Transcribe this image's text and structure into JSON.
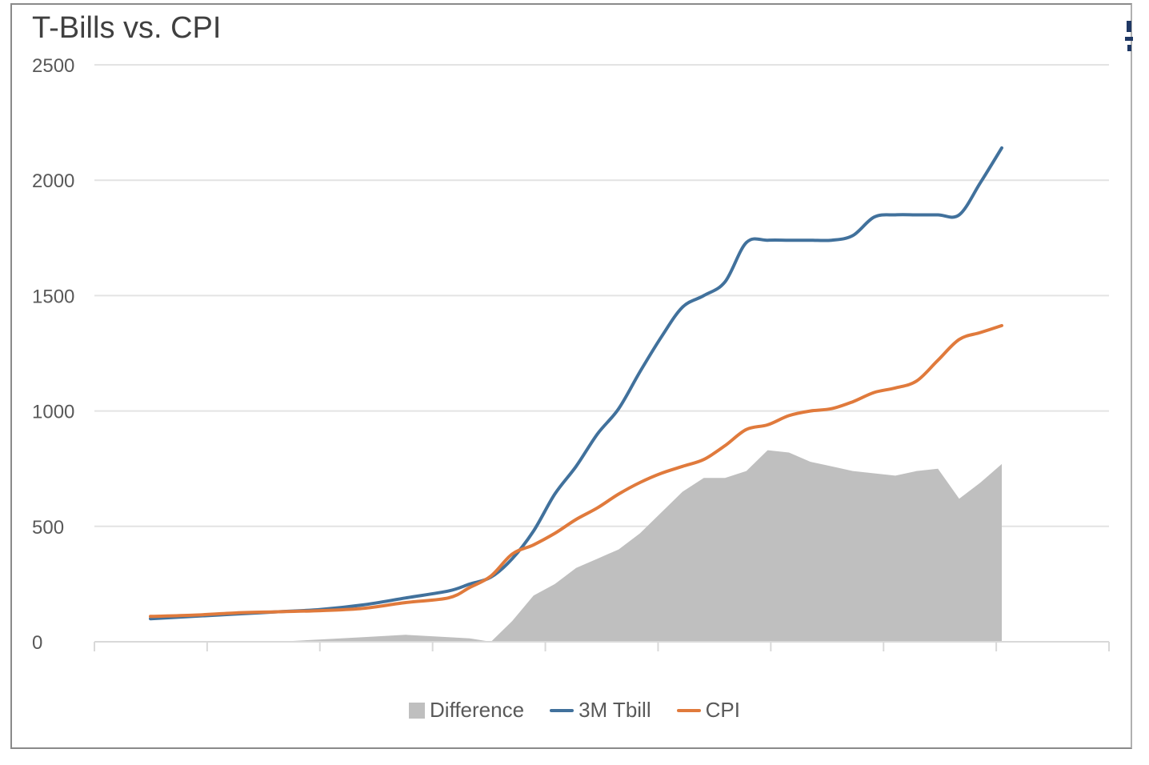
{
  "chart_data": {
    "type": "area",
    "title": "T-Bills vs. CPI",
    "xlabel": "",
    "ylabel": "",
    "ylim": [
      0,
      2500
    ],
    "yticks": [
      "0",
      "500",
      "1000",
      "1500",
      "2000",
      "2500"
    ],
    "x_categories": 8,
    "grid": true,
    "legend_position": "bottom",
    "x": [
      0,
      0.4,
      0.8,
      1.2,
      1.6,
      2.0,
      2.4,
      2.8,
      3.0,
      3.2,
      3.4,
      3.6,
      3.8,
      4.0,
      4.2,
      4.4,
      4.6,
      4.8,
      5.0,
      5.2,
      5.4,
      5.6,
      5.8,
      6.0,
      6.2,
      6.4,
      6.6,
      6.8,
      7.0,
      7.2,
      7.4,
      7.6,
      7.8,
      8.0
    ],
    "series": [
      {
        "name": "Difference",
        "kind": "area",
        "color": "#bfbfbf",
        "values": [
          0,
          0,
          0,
          0,
          10,
          20,
          30,
          20,
          15,
          0,
          90,
          200,
          250,
          320,
          360,
          400,
          470,
          560,
          650,
          710,
          710,
          740,
          830,
          820,
          780,
          760,
          740,
          730,
          720,
          740,
          750,
          620,
          690,
          770
        ]
      },
      {
        "name": "3M Tbill",
        "kind": "line",
        "color": "#41719c",
        "values": [
          100,
          110,
          120,
          130,
          140,
          160,
          190,
          220,
          250,
          280,
          360,
          480,
          640,
          760,
          900,
          1010,
          1170,
          1320,
          1450,
          1500,
          1560,
          1730,
          1740,
          1740,
          1740,
          1740,
          1760,
          1840,
          1850,
          1850,
          1850,
          1850,
          1990,
          2140
        ]
      },
      {
        "name": "CPI",
        "kind": "line",
        "color": "#e07a3c",
        "values": [
          110,
          115,
          125,
          130,
          135,
          145,
          170,
          190,
          235,
          285,
          380,
          420,
          470,
          530,
          580,
          640,
          690,
          730,
          760,
          790,
          850,
          920,
          940,
          980,
          1000,
          1010,
          1040,
          1080,
          1100,
          1130,
          1220,
          1310,
          1340,
          1370
        ]
      }
    ]
  },
  "edge_mark_color": "#1f3864"
}
